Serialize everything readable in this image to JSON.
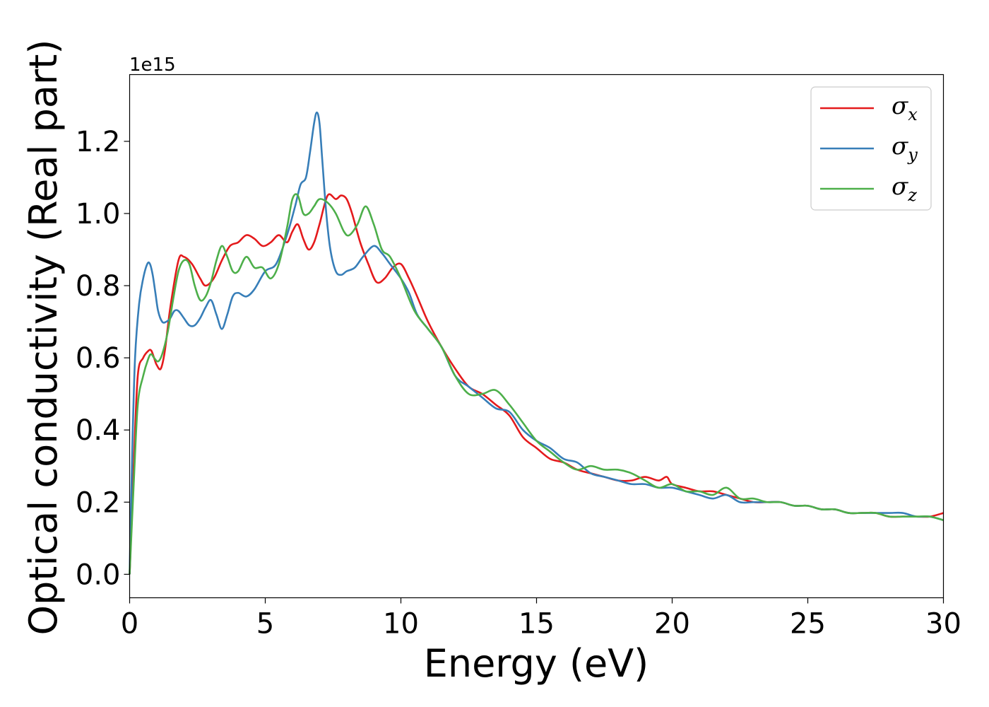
{
  "chart_data": {
    "type": "line",
    "title": "",
    "xlabel": "Energy (eV)",
    "ylabel": "Optical conductivity (Real part)",
    "y_offset_text": "1e15",
    "xlim": [
      0,
      30
    ],
    "ylim": [
      -0.065,
      1.385
    ],
    "x_ticks": [
      0,
      5,
      10,
      15,
      20,
      25,
      30
    ],
    "y_ticks": [
      0.0,
      0.2,
      0.4,
      0.6,
      0.8,
      1.0,
      1.2
    ],
    "x_tick_labels": [
      "0",
      "5",
      "10",
      "15",
      "20",
      "25",
      "30"
    ],
    "y_tick_labels": [
      "0.0",
      "0.2",
      "0.4",
      "0.6",
      "0.8",
      "1.0",
      "1.2"
    ],
    "grid": false,
    "legend_position": "top-right",
    "series": [
      {
        "name": "σx",
        "name_base": "σ",
        "name_sub": "x",
        "color": "#e41a1c",
        "x": [
          0,
          0.15,
          0.3,
          0.5,
          0.7,
          0.8,
          0.9,
          1.0,
          1.15,
          1.3,
          1.5,
          1.8,
          2.0,
          2.3,
          2.6,
          2.8,
          3.1,
          3.4,
          3.7,
          4.0,
          4.3,
          4.6,
          4.9,
          5.2,
          5.5,
          5.8,
          6.0,
          6.2,
          6.4,
          6.6,
          6.8,
          7.0,
          7.3,
          7.6,
          7.8,
          8.0,
          8.2,
          8.5,
          8.8,
          9.1,
          9.4,
          9.7,
          10.0,
          10.3,
          10.6,
          11.0,
          11.5,
          12.0,
          12.5,
          13.0,
          13.5,
          14.0,
          14.5,
          15.0,
          15.5,
          16.0,
          16.5,
          17.0,
          17.5,
          18.0,
          18.5,
          19.0,
          19.5,
          19.8,
          20.0,
          20.5,
          21.0,
          21.5,
          22.0,
          22.5,
          23.0,
          23.5,
          24.0,
          24.5,
          25.0,
          25.5,
          26.0,
          26.5,
          27.0,
          27.5,
          28.0,
          28.5,
          29.0,
          29.5,
          30.0
        ],
        "y": [
          0.0,
          0.3,
          0.55,
          0.6,
          0.62,
          0.62,
          0.6,
          0.58,
          0.57,
          0.62,
          0.74,
          0.87,
          0.88,
          0.86,
          0.82,
          0.8,
          0.82,
          0.87,
          0.91,
          0.92,
          0.94,
          0.93,
          0.91,
          0.92,
          0.94,
          0.92,
          0.95,
          0.97,
          0.93,
          0.9,
          0.92,
          0.97,
          1.05,
          1.04,
          1.05,
          1.04,
          1.0,
          0.92,
          0.86,
          0.81,
          0.82,
          0.85,
          0.86,
          0.82,
          0.77,
          0.7,
          0.63,
          0.57,
          0.52,
          0.5,
          0.47,
          0.44,
          0.38,
          0.35,
          0.32,
          0.31,
          0.29,
          0.28,
          0.27,
          0.26,
          0.26,
          0.27,
          0.26,
          0.27,
          0.25,
          0.24,
          0.23,
          0.23,
          0.22,
          0.21,
          0.2,
          0.2,
          0.2,
          0.19,
          0.19,
          0.18,
          0.18,
          0.17,
          0.17,
          0.17,
          0.16,
          0.16,
          0.16,
          0.16,
          0.17
        ]
      },
      {
        "name": "σy",
        "name_base": "σ",
        "name_sub": "y",
        "color": "#377eb8",
        "x": [
          0,
          0.1,
          0.2,
          0.35,
          0.5,
          0.65,
          0.75,
          0.85,
          0.95,
          1.05,
          1.2,
          1.35,
          1.5,
          1.65,
          1.8,
          2.0,
          2.2,
          2.4,
          2.6,
          2.8,
          3.0,
          3.2,
          3.4,
          3.6,
          3.8,
          4.0,
          4.3,
          4.6,
          5.0,
          5.4,
          5.8,
          6.1,
          6.3,
          6.5,
          6.65,
          6.8,
          6.9,
          7.0,
          7.1,
          7.25,
          7.4,
          7.6,
          7.8,
          8.0,
          8.3,
          8.6,
          9.0,
          9.3,
          9.6,
          10.0,
          10.3,
          10.6,
          11.0,
          11.5,
          12.0,
          12.5,
          13.0,
          13.5,
          14.0,
          14.5,
          15.0,
          15.5,
          16.0,
          16.5,
          17.0,
          17.5,
          18.0,
          18.5,
          19.0,
          19.5,
          20.0,
          20.5,
          21.0,
          21.5,
          22.0,
          22.5,
          23.0,
          23.5,
          24.0,
          24.5,
          25.0,
          25.5,
          26.0,
          26.5,
          27.0,
          27.5,
          28.0,
          28.5,
          29.0,
          29.5,
          30.0
        ],
        "y": [
          0.0,
          0.35,
          0.6,
          0.75,
          0.82,
          0.86,
          0.86,
          0.83,
          0.78,
          0.73,
          0.7,
          0.7,
          0.71,
          0.73,
          0.73,
          0.71,
          0.69,
          0.69,
          0.71,
          0.74,
          0.76,
          0.72,
          0.68,
          0.72,
          0.77,
          0.78,
          0.77,
          0.79,
          0.84,
          0.86,
          0.94,
          1.02,
          1.08,
          1.1,
          1.17,
          1.25,
          1.28,
          1.25,
          1.15,
          1.0,
          0.9,
          0.84,
          0.83,
          0.84,
          0.85,
          0.88,
          0.91,
          0.89,
          0.86,
          0.82,
          0.78,
          0.72,
          0.68,
          0.63,
          0.55,
          0.52,
          0.49,
          0.46,
          0.45,
          0.4,
          0.37,
          0.35,
          0.32,
          0.31,
          0.28,
          0.27,
          0.26,
          0.25,
          0.25,
          0.24,
          0.24,
          0.23,
          0.22,
          0.21,
          0.22,
          0.2,
          0.2,
          0.2,
          0.2,
          0.19,
          0.19,
          0.18,
          0.18,
          0.17,
          0.17,
          0.17,
          0.17,
          0.17,
          0.16,
          0.16,
          0.15
        ]
      },
      {
        "name": "σz",
        "name_base": "σ",
        "name_sub": "z",
        "color": "#4daf4a",
        "x": [
          0,
          0.15,
          0.3,
          0.5,
          0.7,
          0.8,
          0.9,
          1.05,
          1.2,
          1.4,
          1.6,
          1.8,
          2.0,
          2.2,
          2.4,
          2.6,
          2.8,
          3.0,
          3.2,
          3.4,
          3.6,
          3.8,
          4.0,
          4.3,
          4.6,
          4.9,
          5.2,
          5.5,
          5.8,
          6.0,
          6.2,
          6.4,
          6.6,
          6.8,
          7.0,
          7.3,
          7.6,
          7.9,
          8.1,
          8.4,
          8.7,
          9.0,
          9.3,
          9.6,
          10.0,
          10.5,
          11.0,
          11.5,
          12.0,
          12.5,
          13.0,
          13.5,
          14.0,
          14.5,
          15.0,
          15.5,
          16.0,
          16.5,
          17.0,
          17.5,
          18.0,
          18.5,
          19.0,
          19.5,
          20.0,
          20.5,
          21.0,
          21.5,
          22.0,
          22.5,
          23.0,
          23.5,
          24.0,
          24.5,
          25.0,
          25.5,
          26.0,
          26.5,
          27.0,
          27.5,
          28.0,
          28.5,
          29.0,
          29.5,
          30.0
        ],
        "y": [
          0.0,
          0.25,
          0.47,
          0.55,
          0.6,
          0.61,
          0.6,
          0.59,
          0.61,
          0.67,
          0.76,
          0.84,
          0.87,
          0.86,
          0.8,
          0.76,
          0.77,
          0.81,
          0.87,
          0.91,
          0.88,
          0.84,
          0.84,
          0.88,
          0.85,
          0.85,
          0.82,
          0.86,
          0.96,
          1.04,
          1.05,
          1.0,
          1.0,
          1.02,
          1.04,
          1.03,
          1.0,
          0.95,
          0.94,
          0.97,
          1.02,
          0.97,
          0.9,
          0.88,
          0.82,
          0.73,
          0.68,
          0.63,
          0.55,
          0.5,
          0.5,
          0.51,
          0.47,
          0.42,
          0.37,
          0.34,
          0.31,
          0.29,
          0.3,
          0.29,
          0.29,
          0.28,
          0.26,
          0.24,
          0.25,
          0.23,
          0.23,
          0.22,
          0.24,
          0.21,
          0.21,
          0.2,
          0.2,
          0.19,
          0.19,
          0.18,
          0.18,
          0.17,
          0.17,
          0.17,
          0.16,
          0.16,
          0.16,
          0.16,
          0.15
        ]
      }
    ]
  }
}
